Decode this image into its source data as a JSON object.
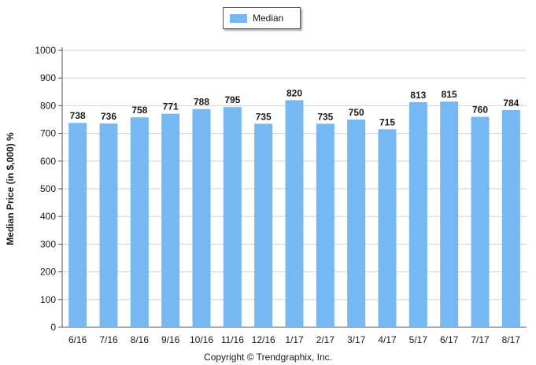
{
  "chart_data": {
    "type": "bar",
    "categories": [
      "6/16",
      "7/16",
      "8/16",
      "9/16",
      "10/16",
      "11/16",
      "12/16",
      "1/17",
      "2/17",
      "3/17",
      "4/17",
      "5/17",
      "6/17",
      "7/17",
      "8/17"
    ],
    "series": [
      {
        "name": "Median",
        "values": [
          738,
          736,
          758,
          771,
          788,
          795,
          735,
          820,
          735,
          750,
          715,
          813,
          815,
          760,
          784
        ]
      }
    ],
    "ylabel": "Median Price (in $,000) %",
    "ylim": [
      0,
      1000
    ],
    "yticks": [
      0,
      100,
      200,
      300,
      400,
      500,
      600,
      700,
      800,
      900,
      1000
    ],
    "grid": true,
    "legend_position": "top-center",
    "data_labels": true,
    "bar_color": "#76b8f3"
  },
  "footer": {
    "copyright": "Copyright © Trendgraphix, Inc."
  }
}
